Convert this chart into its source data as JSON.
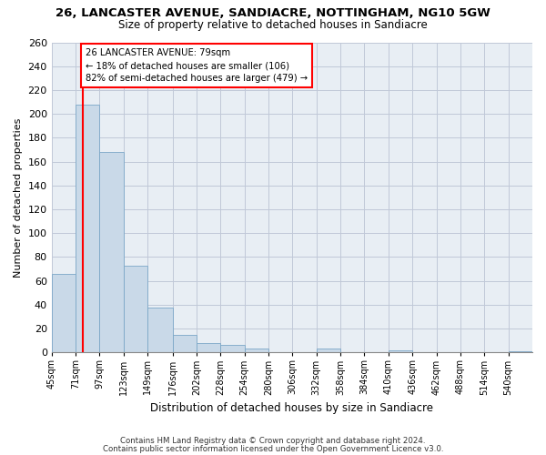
{
  "title_line1": "26, LANCASTER AVENUE, SANDIACRE, NOTTINGHAM, NG10 5GW",
  "title_line2": "Size of property relative to detached houses in Sandiacre",
  "xlabel": "Distribution of detached houses by size in Sandiacre",
  "ylabel": "Number of detached properties",
  "bar_edges": [
    45,
    71,
    97,
    123,
    149,
    176,
    202,
    228,
    254,
    280,
    306,
    332,
    358,
    384,
    410,
    436,
    462,
    488,
    514,
    540,
    566
  ],
  "bar_heights": [
    66,
    208,
    168,
    73,
    38,
    15,
    8,
    6,
    3,
    0,
    0,
    3,
    0,
    0,
    2,
    0,
    0,
    0,
    0,
    1
  ],
  "bar_color": "#c9d9e8",
  "bar_edge_color": "#7ba7c7",
  "red_line_x": 79,
  "annotation_text": "26 LANCASTER AVENUE: 79sqm\n← 18% of detached houses are smaller (106)\n82% of semi-detached houses are larger (479) →",
  "annotation_box_color": "white",
  "annotation_box_edge_color": "red",
  "red_line_color": "red",
  "ylim": [
    0,
    260
  ],
  "yticks": [
    0,
    20,
    40,
    60,
    80,
    100,
    120,
    140,
    160,
    180,
    200,
    220,
    240,
    260
  ],
  "grid_color": "#c0c8d8",
  "background_color": "#e8eef4",
  "footer_line1": "Contains HM Land Registry data © Crown copyright and database right 2024.",
  "footer_line2": "Contains public sector information licensed under the Open Government Licence v3.0."
}
